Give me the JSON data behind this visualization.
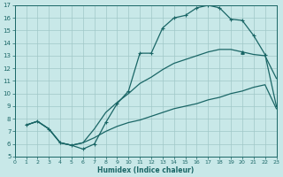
{
  "xlabel": "Humidex (Indice chaleur)",
  "bg_color": "#c8e8e8",
  "grid_color": "#a0c8c8",
  "line_color": "#1a6666",
  "xlim": [
    0,
    23
  ],
  "ylim": [
    5,
    17
  ],
  "xticks": [
    0,
    1,
    2,
    3,
    4,
    5,
    6,
    7,
    8,
    9,
    10,
    11,
    12,
    13,
    14,
    15,
    16,
    17,
    18,
    19,
    20,
    21,
    22,
    23
  ],
  "yticks": [
    5,
    6,
    7,
    8,
    9,
    10,
    11,
    12,
    13,
    14,
    15,
    16,
    17
  ],
  "line1_x": [
    1,
    2,
    3,
    4,
    5,
    6,
    7,
    8,
    9,
    10,
    11,
    12,
    13,
    14,
    15,
    16,
    17,
    18,
    19,
    20,
    21,
    22,
    23
  ],
  "line1_y": [
    7.5,
    7.8,
    7.2,
    6.1,
    5.9,
    5.6,
    6.0,
    7.7,
    9.2,
    10.2,
    13.2,
    13.2,
    15.2,
    16.0,
    16.2,
    16.8,
    17.0,
    16.8,
    15.9,
    15.8,
    14.6,
    13.1,
    9.0
  ],
  "line2_x": [
    1,
    2,
    3,
    4,
    5,
    6,
    7,
    8,
    9,
    10,
    11,
    12,
    13,
    14,
    15,
    16,
    17,
    18,
    19,
    20,
    21,
    22,
    23
  ],
  "line2_y": [
    7.5,
    7.8,
    7.2,
    6.1,
    5.9,
    6.1,
    6.5,
    7.0,
    7.4,
    7.7,
    7.9,
    8.2,
    8.5,
    8.8,
    9.0,
    9.2,
    9.5,
    9.7,
    10.0,
    10.2,
    10.5,
    10.7,
    8.8
  ],
  "line3_x": [
    1,
    2,
    3,
    4,
    5,
    6,
    7,
    8,
    9,
    10,
    11,
    12,
    13,
    14,
    15,
    16,
    17,
    18,
    19,
    20,
    21,
    22,
    23
  ],
  "line3_y": [
    7.5,
    7.8,
    7.2,
    6.1,
    5.9,
    6.1,
    7.2,
    8.5,
    9.3,
    10.0,
    10.8,
    11.3,
    11.9,
    12.4,
    12.7,
    13.0,
    13.3,
    13.5,
    13.5,
    13.3,
    13.1,
    13.0,
    11.2
  ]
}
